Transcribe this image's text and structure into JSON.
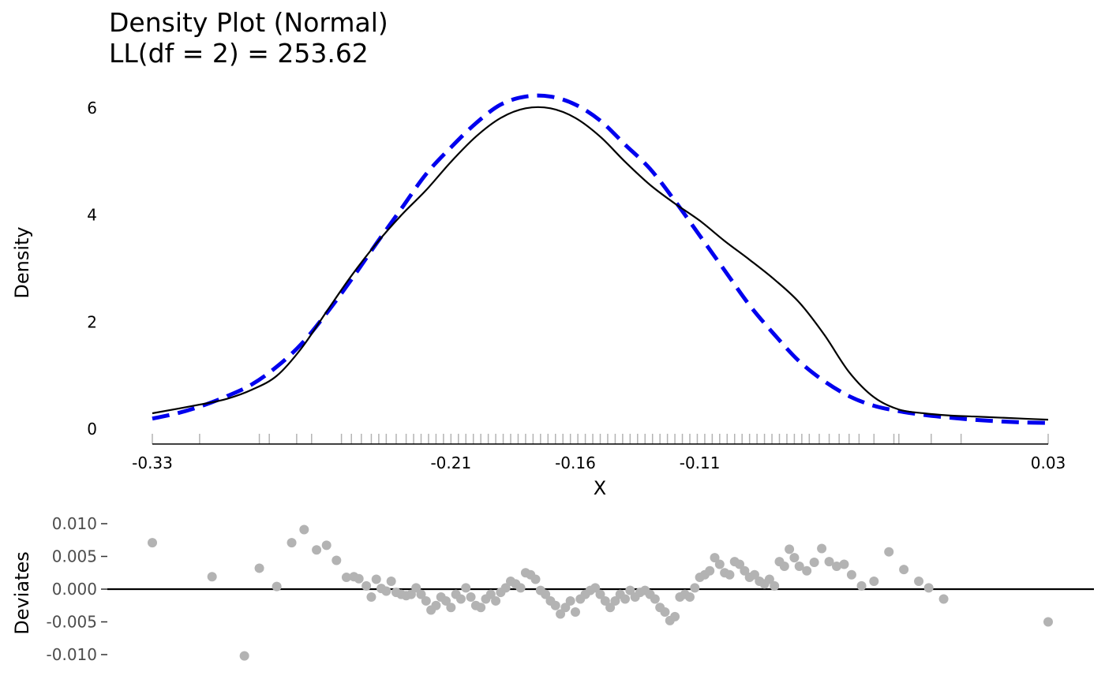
{
  "title_line1": "Density Plot (Normal)",
  "title_line2": "LL(df = 2) = 253.62",
  "chart_data": [
    {
      "type": "line",
      "xlabel": "X",
      "ylabel": "Density",
      "xlim": [
        -0.33,
        0.03
      ],
      "ylim": [
        0,
        6.2
      ],
      "x_ticks": [
        "-0.33",
        "-0.21",
        "-0.16",
        "-0.11",
        "0.03"
      ],
      "x_tick_values": [
        -0.33,
        -0.21,
        -0.16,
        -0.11,
        0.03
      ],
      "y_ticks": [
        "0",
        "2",
        "4",
        "6"
      ],
      "y_tick_values": [
        0,
        2,
        4,
        6
      ],
      "grid": false,
      "series": [
        {
          "style": "solid",
          "color": "#000000",
          "x": [
            -0.33,
            -0.31,
            -0.3,
            -0.29,
            -0.28,
            -0.27,
            -0.26,
            -0.25,
            -0.24,
            -0.23,
            -0.22,
            -0.21,
            -0.2,
            -0.19,
            -0.18,
            -0.17,
            -0.16,
            -0.15,
            -0.14,
            -0.13,
            -0.12,
            -0.11,
            -0.1,
            -0.09,
            -0.08,
            -0.07,
            -0.06,
            -0.05,
            -0.04,
            -0.03,
            -0.02,
            -0.01,
            0.0,
            0.01,
            0.02,
            0.03
          ],
          "y": [
            0.28,
            0.45,
            0.55,
            0.72,
            0.98,
            1.5,
            2.18,
            2.85,
            3.45,
            3.98,
            4.45,
            4.98,
            5.45,
            5.8,
            5.98,
            5.98,
            5.8,
            5.45,
            4.98,
            4.55,
            4.2,
            3.88,
            3.5,
            3.15,
            2.78,
            2.35,
            1.75,
            1.05,
            0.58,
            0.35,
            0.28,
            0.24,
            0.22,
            0.2,
            0.18,
            0.16
          ]
        },
        {
          "style": "dashed",
          "color": "#0000ee",
          "x": [
            -0.33,
            -0.32,
            -0.31,
            -0.3,
            -0.29,
            -0.28,
            -0.27,
            -0.26,
            -0.25,
            -0.24,
            -0.23,
            -0.22,
            -0.21,
            -0.2,
            -0.19,
            -0.18,
            -0.17,
            -0.16,
            -0.15,
            -0.14,
            -0.13,
            -0.12,
            -0.11,
            -0.1,
            -0.09,
            -0.08,
            -0.07,
            -0.06,
            -0.05,
            -0.04,
            -0.03,
            -0.02,
            -0.01,
            0.0,
            0.01,
            0.02,
            0.03
          ],
          "y": [
            0.18,
            0.28,
            0.42,
            0.6,
            0.82,
            1.15,
            1.58,
            2.15,
            2.78,
            3.45,
            4.1,
            4.75,
            5.25,
            5.7,
            6.05,
            6.2,
            6.2,
            6.05,
            5.75,
            5.3,
            4.85,
            4.25,
            3.6,
            2.95,
            2.3,
            1.75,
            1.25,
            0.88,
            0.6,
            0.42,
            0.32,
            0.25,
            0.2,
            0.16,
            0.13,
            0.11,
            0.1
          ]
        }
      ],
      "rug_x": [
        -0.33,
        -0.311,
        -0.287,
        -0.283,
        -0.272,
        -0.266,
        -0.254,
        -0.25,
        -0.246,
        -0.242,
        -0.239,
        -0.236,
        -0.232,
        -0.228,
        -0.225,
        -0.222,
        -0.219,
        -0.216,
        -0.213,
        -0.21,
        -0.207,
        -0.204,
        -0.201,
        -0.198,
        -0.195,
        -0.192,
        -0.189,
        -0.186,
        -0.183,
        -0.18,
        -0.177,
        -0.174,
        -0.171,
        -0.168,
        -0.165,
        -0.162,
        -0.159,
        -0.156,
        -0.153,
        -0.15,
        -0.147,
        -0.144,
        -0.141,
        -0.138,
        -0.135,
        -0.132,
        -0.129,
        -0.126,
        -0.123,
        -0.12,
        -0.117,
        -0.114,
        -0.111,
        -0.108,
        -0.105,
        -0.102,
        -0.099,
        -0.096,
        -0.093,
        -0.09,
        -0.087,
        -0.084,
        -0.081,
        -0.078,
        -0.075,
        -0.072,
        -0.069,
        -0.066,
        -0.062,
        -0.058,
        -0.054,
        -0.05,
        -0.046,
        -0.04,
        -0.032,
        -0.03,
        -0.017,
        -0.005,
        0.03
      ]
    },
    {
      "type": "scatter",
      "ylabel": "Deviates",
      "xlim": [
        -0.33,
        0.03
      ],
      "ylim": [
        -0.01,
        0.01
      ],
      "y_ticks": [
        "0.010",
        "0.005",
        "0.000",
        "-0.005",
        "-0.010"
      ],
      "y_tick_values": [
        0.01,
        0.005,
        0.0,
        -0.005,
        -0.01
      ],
      "reference_line_y": 0,
      "point_color": "#b3b3b3",
      "x": [
        -0.33,
        -0.306,
        -0.293,
        -0.287,
        -0.28,
        -0.274,
        -0.269,
        -0.264,
        -0.26,
        -0.256,
        -0.252,
        -0.249,
        -0.247,
        -0.244,
        -0.242,
        -0.24,
        -0.238,
        -0.236,
        -0.234,
        -0.232,
        -0.23,
        -0.228,
        -0.226,
        -0.224,
        -0.222,
        -0.22,
        -0.218,
        -0.216,
        -0.214,
        -0.212,
        -0.21,
        -0.208,
        -0.206,
        -0.204,
        -0.202,
        -0.2,
        -0.198,
        -0.196,
        -0.194,
        -0.192,
        -0.19,
        -0.188,
        -0.186,
        -0.184,
        -0.182,
        -0.18,
        -0.178,
        -0.176,
        -0.174,
        -0.172,
        -0.17,
        -0.168,
        -0.166,
        -0.164,
        -0.162,
        -0.16,
        -0.158,
        -0.156,
        -0.154,
        -0.152,
        -0.15,
        -0.148,
        -0.146,
        -0.144,
        -0.142,
        -0.14,
        -0.138,
        -0.136,
        -0.134,
        -0.132,
        -0.13,
        -0.128,
        -0.126,
        -0.124,
        -0.122,
        -0.12,
        -0.118,
        -0.116,
        -0.114,
        -0.112,
        -0.11,
        -0.108,
        -0.106,
        -0.104,
        -0.102,
        -0.1,
        -0.098,
        -0.096,
        -0.094,
        -0.092,
        -0.09,
        -0.088,
        -0.086,
        -0.084,
        -0.082,
        -0.08,
        -0.078,
        -0.076,
        -0.074,
        -0.072,
        -0.07,
        -0.067,
        -0.064,
        -0.061,
        -0.058,
        -0.055,
        -0.052,
        -0.049,
        -0.045,
        -0.04,
        -0.034,
        -0.028,
        -0.022,
        -0.018,
        -0.012,
        0.03
      ],
      "y": [
        0.0071,
        0.0019,
        -0.0102,
        0.0032,
        0.0004,
        0.0071,
        0.0091,
        0.006,
        0.0067,
        0.0044,
        0.0018,
        0.0019,
        0.0016,
        0.0005,
        -0.0012,
        0.0015,
        0.0001,
        -0.0003,
        0.0012,
        -0.0005,
        -0.0008,
        -0.001,
        -0.0008,
        0.0002,
        -0.0008,
        -0.0018,
        -0.0032,
        -0.0025,
        -0.0012,
        -0.0018,
        -0.0028,
        -0.0008,
        -0.0015,
        0.0002,
        -0.0012,
        -0.0025,
        -0.0028,
        -0.0015,
        -0.0008,
        -0.0018,
        -0.0005,
        0.0002,
        0.0012,
        0.0008,
        0.0002,
        0.0025,
        0.0022,
        0.0015,
        -0.0002,
        -0.0008,
        -0.0018,
        -0.0025,
        -0.0038,
        -0.0028,
        -0.0018,
        -0.0035,
        -0.0015,
        -0.0008,
        -0.0002,
        0.0002,
        -0.0008,
        -0.0018,
        -0.0028,
        -0.0018,
        -0.0008,
        -0.0015,
        -0.0002,
        -0.0012,
        -0.0005,
        -0.0002,
        -0.0008,
        -0.0015,
        -0.0028,
        -0.0035,
        -0.0048,
        -0.0042,
        -0.0012,
        -0.0008,
        -0.0012,
        0.0002,
        0.0018,
        0.0022,
        0.0028,
        0.0048,
        0.0038,
        0.0025,
        0.0022,
        0.0042,
        0.0038,
        0.0028,
        0.0018,
        0.0022,
        0.0012,
        0.0008,
        0.0015,
        0.0005,
        0.0042,
        0.0035,
        0.0061,
        0.0048,
        0.0035,
        0.0028,
        0.0041,
        0.0062,
        0.0042,
        0.0035,
        0.0038,
        0.0022,
        0.0005,
        0.0012,
        0.0057,
        0.003,
        0.0012,
        0.0002,
        -0.0015,
        -0.005
      ]
    }
  ]
}
